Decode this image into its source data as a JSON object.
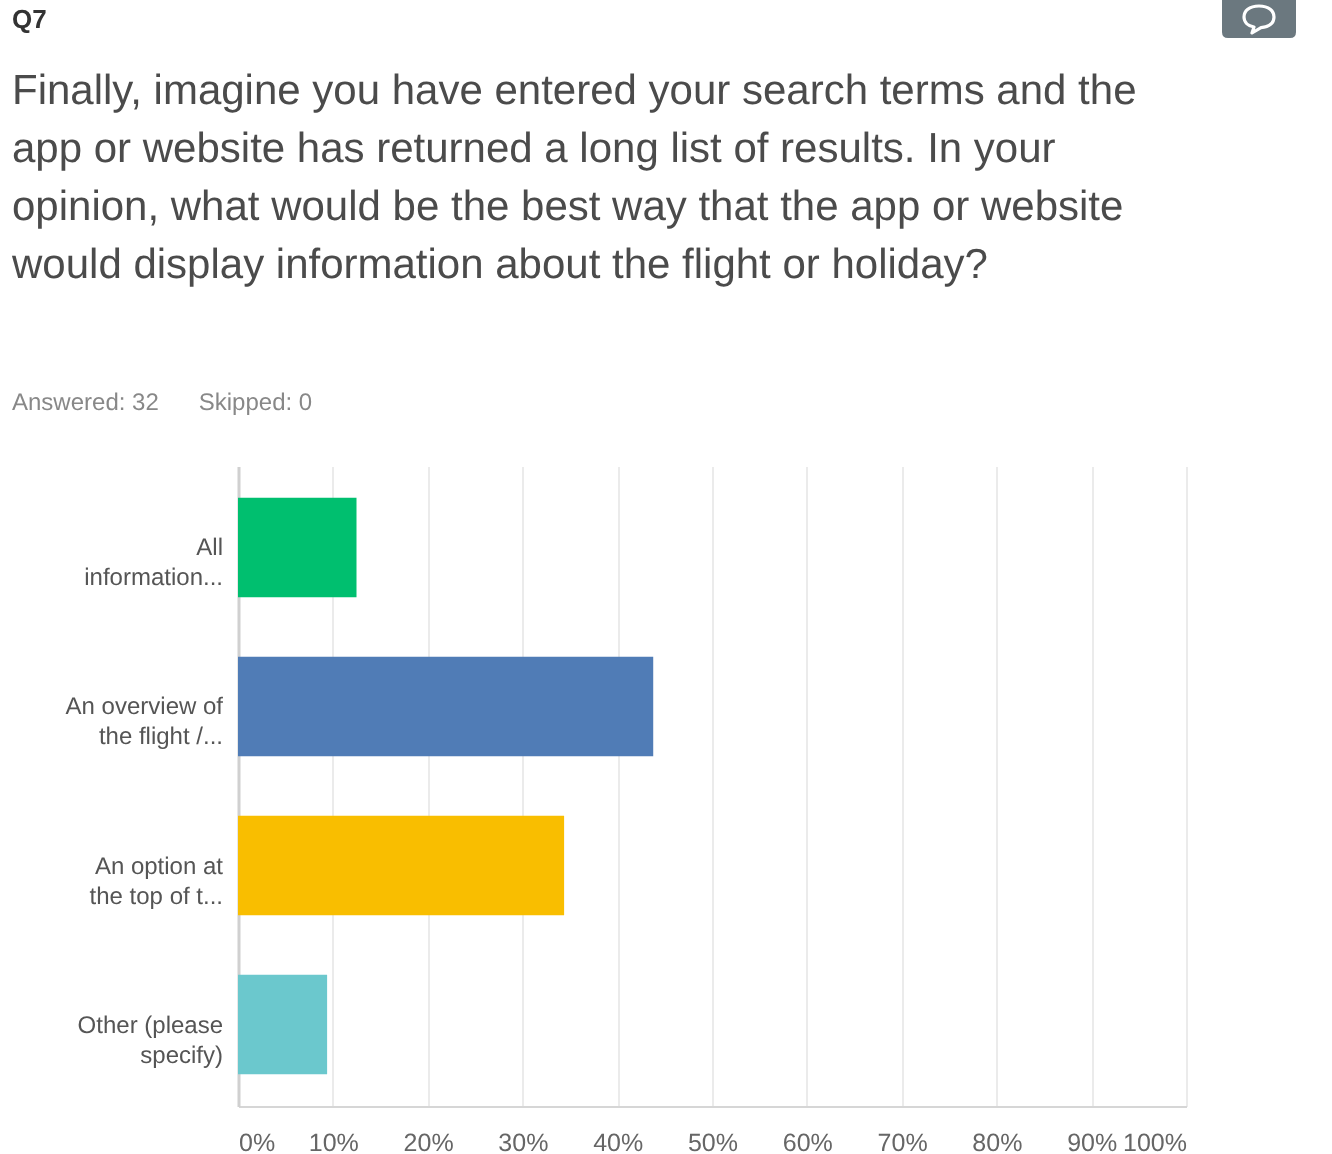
{
  "chart_data": {
    "type": "bar",
    "orientation": "horizontal",
    "title": "Finally, imagine you have entered your search terms and the app or website has returned a long list of results. In your opinion, what would be the best way that the app or website would display information about the flight or holiday?",
    "annotations": [
      "Q7",
      "Answered: 32",
      "Skipped: 0"
    ],
    "categories": [
      "All information...",
      "An overview of the flight /...",
      "An option at the top of t...",
      "Other (please specify)"
    ],
    "values": [
      12.5,
      43.8,
      34.4,
      9.4
    ],
    "colors": [
      "#00bf6f",
      "#507cb6",
      "#f9be00",
      "#6bc8cd"
    ],
    "xlim": [
      0,
      100
    ],
    "xticks": [
      {
        "value": 0,
        "label": "0%"
      },
      {
        "value": 10,
        "label": "10%"
      },
      {
        "value": 20,
        "label": "20%"
      },
      {
        "value": 30,
        "label": "30%"
      },
      {
        "value": 40,
        "label": "40%"
      },
      {
        "value": 50,
        "label": "50%"
      },
      {
        "value": 60,
        "label": "60%"
      },
      {
        "value": 70,
        "label": "70%"
      },
      {
        "value": 80,
        "label": "80%"
      },
      {
        "value": 90,
        "label": "90%"
      },
      {
        "value": 100,
        "label": "100%"
      }
    ],
    "grid": "x"
  }
}
